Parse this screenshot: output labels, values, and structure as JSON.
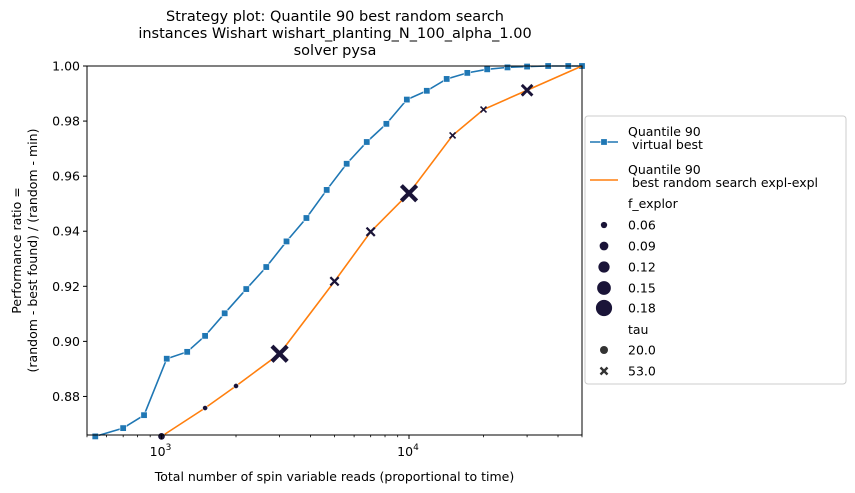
{
  "chart_data": {
    "type": "line",
    "title_lines": [
      "Strategy plot: Quantile 90 best random search",
      "instances Wishart wishart_planting_N_100_alpha_1.00",
      "solver pysa"
    ],
    "xlabel": "Total number of spin variable reads (proportional to time)",
    "ylabel_lines": [
      "Performance ratio =",
      "(random - best found) / (random - min)"
    ],
    "xscale": "log",
    "xlim": [
      500,
      50000
    ],
    "ylim": [
      0.866,
      1.0
    ],
    "yticks": [
      "0.88",
      "0.90",
      "0.92",
      "0.94",
      "0.96",
      "0.98",
      "1.00"
    ],
    "xticks": [
      {
        "base": "10",
        "exp": "3"
      },
      {
        "base": "10",
        "exp": "4"
      }
    ],
    "series": [
      {
        "name": "Quantile 90\n virtual best",
        "color": "#1f77b4",
        "marker": "square",
        "x": [
          540,
          700,
          850,
          1050,
          1270,
          1500,
          1800,
          2200,
          2650,
          3200,
          3850,
          4650,
          5600,
          6750,
          8100,
          9800,
          11800,
          14200,
          17200,
          20700,
          25000,
          30000,
          36500,
          44000,
          50000
        ],
        "y": [
          0.8655,
          0.8685,
          0.8732,
          0.8937,
          0.8962,
          0.902,
          0.9102,
          0.919,
          0.927,
          0.9363,
          0.9448,
          0.955,
          0.9645,
          0.9724,
          0.979,
          0.9878,
          0.991,
          0.9953,
          0.9975,
          0.9988,
          0.9995,
          0.9998,
          1.0,
          1.0,
          1.0
        ]
      },
      {
        "name": "Quantile 90\n best random search expl-expl",
        "color": "#ff7f0e",
        "marker": "none",
        "x": [
          1000,
          1500,
          2000,
          3000,
          5000,
          7000,
          10000,
          15000,
          20000,
          30000,
          50000
        ],
        "y": [
          0.8655,
          0.8758,
          0.8838,
          0.8955,
          0.9218,
          0.9398,
          0.9538,
          0.9748,
          0.9842,
          0.9912,
          1.0
        ]
      }
    ],
    "scatter_points": [
      {
        "x": 1000,
        "y": 0.8655,
        "f_explor": 0.09,
        "tau": "20.0"
      },
      {
        "x": 1500,
        "y": 0.8758,
        "f_explor": 0.06,
        "tau": "20.0"
      },
      {
        "x": 2000,
        "y": 0.8838,
        "f_explor": 0.06,
        "tau": "20.0"
      },
      {
        "x": 3000,
        "y": 0.8955,
        "f_explor": 0.18,
        "tau": "53.0"
      },
      {
        "x": 5000,
        "y": 0.9218,
        "f_explor": 0.09,
        "tau": "53.0"
      },
      {
        "x": 7000,
        "y": 0.9398,
        "f_explor": 0.09,
        "tau": "53.0"
      },
      {
        "x": 10000,
        "y": 0.9538,
        "f_explor": 0.18,
        "tau": "53.0"
      },
      {
        "x": 15000,
        "y": 0.9748,
        "f_explor": 0.06,
        "tau": "53.0"
      },
      {
        "x": 20000,
        "y": 0.9842,
        "f_explor": 0.06,
        "tau": "53.0"
      },
      {
        "x": 30000,
        "y": 0.9912,
        "f_explor": 0.12,
        "tau": "53.0"
      }
    ],
    "legend": {
      "placement": "outside-right",
      "f_explor_title": "f_explor",
      "f_explor_values": [
        "0.06",
        "0.09",
        "0.12",
        "0.15",
        "0.18"
      ],
      "tau_title": "tau",
      "tau_values": [
        {
          "label": "20.0",
          "marker": "circle"
        },
        {
          "label": "53.0",
          "marker": "x"
        }
      ]
    },
    "marker_color": "#1a1438"
  }
}
